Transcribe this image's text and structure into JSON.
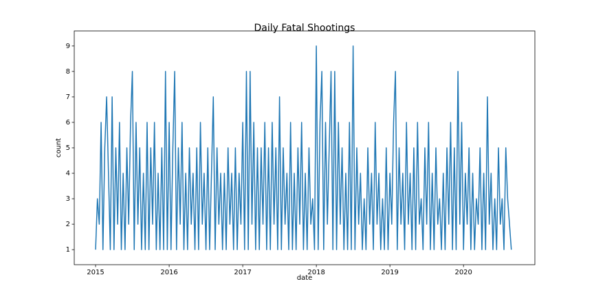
{
  "chart_data": {
    "type": "line",
    "title": "Daily Fatal Shootings",
    "x_label": "date",
    "y_label": "count",
    "x": [
      2015,
      2015.025,
      2015.05,
      2015.075,
      2015.1,
      2015.125,
      2015.15,
      2015.175,
      2015.2,
      2015.225,
      2015.25,
      2015.275,
      2015.3,
      2015.325,
      2015.35,
      2015.375,
      2015.4,
      2015.425,
      2015.45,
      2015.475,
      2015.5,
      2015.525,
      2015.55,
      2015.575,
      2015.6,
      2015.625,
      2015.65,
      2015.675,
      2015.7,
      2015.725,
      2015.75,
      2015.775,
      2015.8,
      2015.825,
      2015.85,
      2015.875,
      2015.9,
      2015.925,
      2015.95,
      2015.975,
      2016,
      2016.025,
      2016.05,
      2016.075,
      2016.1,
      2016.125,
      2016.15,
      2016.175,
      2016.2,
      2016.225,
      2016.25,
      2016.275,
      2016.3,
      2016.325,
      2016.35,
      2016.375,
      2016.4,
      2016.425,
      2016.45,
      2016.475,
      2016.5,
      2016.525,
      2016.55,
      2016.575,
      2016.6,
      2016.625,
      2016.65,
      2016.675,
      2016.7,
      2016.725,
      2016.75,
      2016.775,
      2016.8,
      2016.825,
      2016.85,
      2016.875,
      2016.9,
      2016.925,
      2016.95,
      2016.975,
      2017,
      2017.025,
      2017.05,
      2017.075,
      2017.1,
      2017.125,
      2017.15,
      2017.175,
      2017.2,
      2017.225,
      2017.25,
      2017.275,
      2017.3,
      2017.325,
      2017.35,
      2017.375,
      2017.4,
      2017.425,
      2017.45,
      2017.475,
      2017.5,
      2017.525,
      2017.55,
      2017.575,
      2017.6,
      2017.625,
      2017.65,
      2017.675,
      2017.7,
      2017.725,
      2017.75,
      2017.775,
      2017.8,
      2017.825,
      2017.85,
      2017.875,
      2017.9,
      2017.925,
      2017.95,
      2017.975,
      2018,
      2018.025,
      2018.05,
      2018.075,
      2018.1,
      2018.125,
      2018.15,
      2018.175,
      2018.2,
      2018.225,
      2018.25,
      2018.275,
      2018.3,
      2018.325,
      2018.35,
      2018.375,
      2018.4,
      2018.425,
      2018.45,
      2018.475,
      2018.5,
      2018.525,
      2018.55,
      2018.575,
      2018.6,
      2018.625,
      2018.65,
      2018.675,
      2018.7,
      2018.725,
      2018.75,
      2018.775,
      2018.8,
      2018.825,
      2018.85,
      2018.875,
      2018.9,
      2018.925,
      2018.95,
      2018.975,
      2019,
      2019.025,
      2019.05,
      2019.075,
      2019.1,
      2019.125,
      2019.15,
      2019.175,
      2019.2,
      2019.225,
      2019.25,
      2019.275,
      2019.3,
      2019.325,
      2019.35,
      2019.375,
      2019.4,
      2019.425,
      2019.45,
      2019.475,
      2019.5,
      2019.525,
      2019.55,
      2019.575,
      2019.6,
      2019.625,
      2019.65,
      2019.675,
      2019.7,
      2019.725,
      2019.75,
      2019.775,
      2019.8,
      2019.825,
      2019.85,
      2019.875,
      2019.9,
      2019.925,
      2019.95,
      2019.975,
      2020,
      2020.025,
      2020.05,
      2020.075,
      2020.1,
      2020.125,
      2020.15,
      2020.175,
      2020.2,
      2020.225,
      2020.25,
      2020.275,
      2020.3,
      2020.325,
      2020.35,
      2020.375,
      2020.4,
      2020.425,
      2020.45,
      2020.475,
      2020.5,
      2020.525,
      2020.55,
      2020.575,
      2020.6,
      2020.625,
      2020.65
    ],
    "series": [
      {
        "name": "count",
        "color": "#1f77b4",
        "values": [
          1,
          3,
          2,
          6,
          1,
          5,
          7,
          4,
          1,
          7,
          1,
          5,
          2,
          6,
          1,
          4,
          1,
          5,
          2,
          6,
          8,
          1,
          6,
          2,
          5,
          1,
          4,
          1,
          6,
          1,
          5,
          2,
          6,
          1,
          4,
          1,
          5,
          1,
          8,
          1,
          6,
          1,
          5,
          8,
          1,
          5,
          2,
          6,
          1,
          4,
          1,
          5,
          2,
          4,
          1,
          5,
          1,
          6,
          2,
          4,
          1,
          5,
          1,
          4,
          7,
          1,
          5,
          2,
          4,
          1,
          4,
          1,
          5,
          2,
          4,
          1,
          5,
          1,
          4,
          2,
          6,
          1,
          8,
          1,
          8,
          2,
          6,
          1,
          5,
          1,
          5,
          2,
          6,
          1,
          5,
          1,
          6,
          2,
          5,
          1,
          7,
          1,
          5,
          2,
          4,
          1,
          6,
          1,
          4,
          1,
          5,
          2,
          6,
          1,
          4,
          1,
          5,
          2,
          3,
          1,
          9,
          1,
          6,
          8,
          1,
          6,
          2,
          5,
          8,
          1,
          8,
          1,
          6,
          2,
          5,
          1,
          4,
          1,
          6,
          1,
          9,
          1,
          5,
          2,
          4,
          1,
          3,
          1,
          5,
          2,
          4,
          1,
          6,
          2,
          4,
          1,
          3,
          1,
          5,
          1,
          4,
          2,
          6,
          8,
          1,
          5,
          2,
          4,
          1,
          6,
          2,
          4,
          1,
          5,
          1,
          6,
          2,
          3,
          1,
          5,
          2,
          6,
          1,
          4,
          1,
          5,
          2,
          3,
          1,
          4,
          1,
          5,
          2,
          6,
          1,
          5,
          1,
          8,
          2,
          6,
          1,
          4,
          2,
          5,
          1,
          4,
          1,
          3,
          2,
          5,
          1,
          4,
          1,
          7,
          2,
          4,
          1,
          3,
          1,
          5,
          2,
          3,
          1,
          5,
          3,
          2,
          1
        ]
      }
    ],
    "xlim": [
      2014.71,
      2020.97
    ],
    "xticks": [
      2015,
      2016,
      2017,
      2018,
      2019,
      2020
    ],
    "ylim": [
      0.41,
      9.59
    ],
    "yticks": [
      1,
      2,
      3,
      4,
      5,
      6,
      7,
      8,
      9
    ]
  }
}
